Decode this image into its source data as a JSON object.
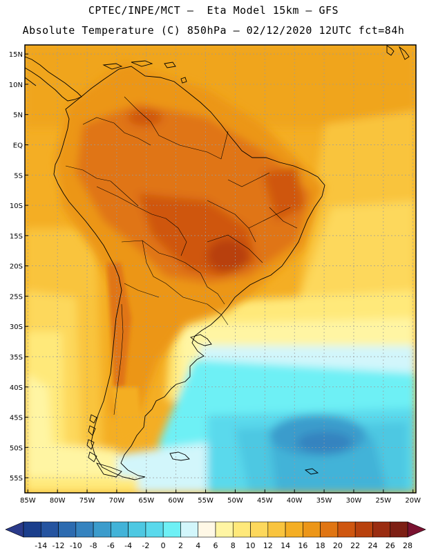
{
  "header": {
    "line1": "CPTEC/INPE/MCT –  Eta Model 15km – GFS",
    "line2": "Absolute Temperature (C) 850hPa – 02/12/2020 12UTC fct=84h"
  },
  "map": {
    "lat_labels": [
      "15N",
      "10N",
      "5N",
      "EQ",
      "5S",
      "10S",
      "15S",
      "20S",
      "25S",
      "30S",
      "35S",
      "40S",
      "45S",
      "50S",
      "55S"
    ],
    "lat_values": [
      15,
      10,
      5,
      0,
      -5,
      -10,
      -15,
      -20,
      -25,
      -30,
      -35,
      -40,
      -45,
      -50,
      -55
    ],
    "lon_labels": [
      "85W",
      "80W",
      "75W",
      "70W",
      "65W",
      "60W",
      "55W",
      "50W",
      "45W",
      "40W",
      "35W",
      "30W",
      "25W",
      "20W"
    ],
    "lon_values": [
      -85,
      -80,
      -75,
      -70,
      -65,
      -60,
      -55,
      -50,
      -45,
      -40,
      -35,
      -30,
      -25,
      -20
    ],
    "lon_range": [
      -85.5,
      -19.5
    ],
    "lat_range": [
      -57.5,
      16.5
    ]
  },
  "colorbar": {
    "labels": [
      "-14",
      "-12",
      "-10",
      "-8",
      "-6",
      "-4",
      "-2",
      "0",
      "2",
      "4",
      "6",
      "8",
      "10",
      "12",
      "14",
      "16",
      "18",
      "20",
      "22",
      "24",
      "26",
      "28"
    ],
    "colors": [
      "#1a3e8c",
      "#2554a0",
      "#2c6bb0",
      "#3583bf",
      "#3b9ccc",
      "#42b3d8",
      "#4dc8e2",
      "#5ad9ec",
      "#6ef0f5",
      "#d2f6fb",
      "#fff8e6",
      "#fff5a3",
      "#ffe97a",
      "#fdd85c",
      "#f9c43e",
      "#f4ae24",
      "#ec9618",
      "#e07512",
      "#cf560f",
      "#b8410d",
      "#9a2c10",
      "#7d1f14"
    ],
    "under_color": "#2a3a8a",
    "over_color": "#7a1230"
  }
}
